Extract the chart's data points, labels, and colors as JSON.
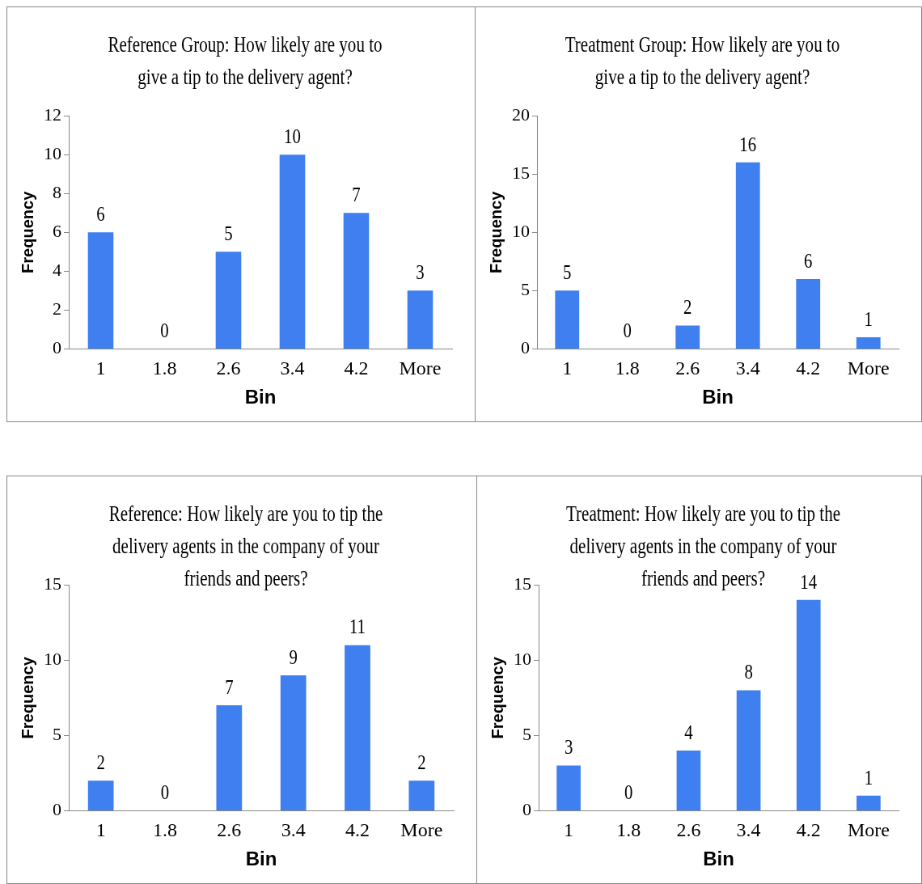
{
  "chart_data": [
    {
      "type": "bar",
      "title": "Reference Group: How likely are you to give a tip to the delivery agent?",
      "xlabel": "Bin",
      "ylabel": "Frequency",
      "categories": [
        "1",
        "1.8",
        "2.6",
        "3.4",
        "4.2",
        "More"
      ],
      "values": [
        6,
        0,
        5,
        10,
        7,
        3
      ],
      "color": "#3f7fef",
      "ylim": [
        0,
        12
      ],
      "yticks": [
        0,
        2,
        4,
        6,
        8,
        10,
        12
      ],
      "data_labels": true
    },
    {
      "type": "bar",
      "title": "Treatment Group: How likely are you to give a tip to the delivery agent?",
      "xlabel": "Bin",
      "ylabel": "Frequency",
      "categories": [
        "1",
        "1.8",
        "2.6",
        "3.4",
        "4.2",
        "More"
      ],
      "values": [
        5,
        0,
        2,
        16,
        6,
        1
      ],
      "color": "#3f7fef",
      "ylim": [
        0,
        20
      ],
      "yticks": [
        0,
        5,
        10,
        15,
        20
      ],
      "data_labels": true
    },
    {
      "type": "bar",
      "title": "Reference: How likely are you to tip the delivery agents in the company of your friends and peers?",
      "xlabel": "Bin",
      "ylabel": "Frequency",
      "categories": [
        "1",
        "1.8",
        "2.6",
        "3.4",
        "4.2",
        "More"
      ],
      "values": [
        2,
        0,
        7,
        9,
        11,
        2
      ],
      "color": "#3f7fef",
      "ylim": [
        0,
        15
      ],
      "yticks": [
        0,
        5,
        10,
        15
      ],
      "data_labels": true
    },
    {
      "type": "bar",
      "title": "Treatment: How likely are you to tip the delivery agents in the company of your friends and peers?",
      "xlabel": "Bin",
      "ylabel": "Frequency",
      "categories": [
        "1",
        "1.8",
        "2.6",
        "3.4",
        "4.2",
        "More"
      ],
      "values": [
        3,
        0,
        4,
        8,
        14,
        1
      ],
      "color": "#3f7fef",
      "ylim": [
        0,
        15
      ],
      "yticks": [
        0,
        5,
        10,
        15
      ],
      "data_labels": true
    }
  ]
}
